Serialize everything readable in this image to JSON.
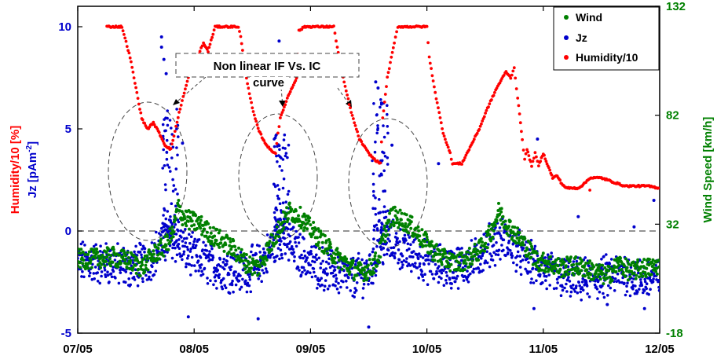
{
  "chart_data": {
    "type": "scatter",
    "x_axis": {
      "ticks": [
        "07/05",
        "08/05",
        "09/05",
        "10/05",
        "11/05",
        "12/05"
      ],
      "range": [
        "07/05",
        "12/05"
      ]
    },
    "y_left": {
      "label_humidity": "Humidity/10 [%]",
      "label_jz_prefix": "Jz [pAm",
      "label_jz_sup": "-2",
      "label_jz_suffix": "]",
      "range": [
        -5,
        11
      ],
      "ticks": [
        "-5",
        "0",
        "5",
        "10"
      ],
      "color_humidity": "#ff0000",
      "color_jz": "#0000cc"
    },
    "y_right": {
      "label": "Wind Speed [km/h]",
      "range": [
        -18,
        132
      ],
      "ticks": [
        "-18",
        "32",
        "82",
        "132"
      ],
      "color": "#008000"
    },
    "zero_line": 0,
    "legend": {
      "placement": "top-right",
      "entries": [
        {
          "name": "Wind",
          "color": "#008000"
        },
        {
          "name": "Jz",
          "color": "#0000cc"
        },
        {
          "name": "Humidity/10",
          "color": "#ff0000"
        }
      ]
    },
    "annotation": {
      "line1": "Non linear IF Vs. IC",
      "line2": "curve"
    },
    "series": [
      {
        "name": "Humidity/10",
        "color": "#ff0000",
        "points": [
          [
            0.25,
            10
          ],
          [
            0.38,
            10
          ],
          [
            0.45,
            8.5
          ],
          [
            0.5,
            7
          ],
          [
            0.55,
            5.5
          ],
          [
            0.6,
            5
          ],
          [
            0.65,
            5.3
          ],
          [
            0.7,
            4.8
          ],
          [
            0.75,
            4.2
          ],
          [
            0.8,
            4
          ],
          [
            0.88,
            6
          ],
          [
            0.95,
            7.5
          ],
          [
            1.0,
            8.2
          ],
          [
            1.05,
            8.8
          ],
          [
            1.08,
            9.2
          ],
          [
            1.12,
            8.8
          ],
          [
            1.18,
            10
          ],
          [
            1.38,
            10
          ],
          [
            1.4,
            9.5
          ],
          [
            1.45,
            7.5
          ],
          [
            1.5,
            6
          ],
          [
            1.55,
            5
          ],
          [
            1.6,
            4.4
          ],
          [
            1.65,
            4
          ],
          [
            1.7,
            3.8
          ],
          [
            1.72,
            4.8
          ],
          [
            1.74,
            5.5
          ],
          [
            1.8,
            6.5
          ],
          [
            1.88,
            7.5
          ],
          [
            1.9,
            9.8
          ],
          [
            1.95,
            10
          ],
          [
            2.2,
            10
          ],
          [
            2.23,
            9
          ],
          [
            2.28,
            7.5
          ],
          [
            2.35,
            5.8
          ],
          [
            2.42,
            4.5
          ],
          [
            2.5,
            3.8
          ],
          [
            2.55,
            3.5
          ],
          [
            2.6,
            3.3
          ],
          [
            2.62,
            5.5
          ],
          [
            2.66,
            7.5
          ],
          [
            2.72,
            9.2
          ],
          [
            2.75,
            10
          ],
          [
            3.0,
            10
          ],
          [
            3.02,
            8.5
          ],
          [
            3.08,
            6.5
          ],
          [
            3.14,
            4.8
          ],
          [
            3.2,
            3.8
          ],
          [
            3.22,
            3.3
          ],
          [
            3.3,
            3.3
          ],
          [
            3.38,
            4.2
          ],
          [
            3.45,
            5
          ],
          [
            3.52,
            6
          ],
          [
            3.6,
            7
          ],
          [
            3.68,
            7.8
          ],
          [
            3.72,
            7.5
          ],
          [
            3.75,
            8
          ],
          [
            3.78,
            6.5
          ],
          [
            3.82,
            4.5
          ],
          [
            3.84,
            3.5
          ],
          [
            3.86,
            4
          ],
          [
            3.9,
            3.2
          ],
          [
            3.93,
            3.8
          ],
          [
            3.96,
            3.2
          ],
          [
            4.0,
            3.8
          ],
          [
            4.04,
            3.2
          ],
          [
            4.08,
            2.6
          ],
          [
            4.12,
            2.7
          ],
          [
            4.16,
            2.3
          ],
          [
            4.2,
            2.1
          ],
          [
            4.25,
            2.1
          ],
          [
            4.3,
            2.1
          ],
          [
            4.35,
            2.3
          ],
          [
            4.4,
            2.6
          ],
          [
            4.5,
            2.6
          ],
          [
            4.55,
            2.5
          ],
          [
            4.6,
            2.4
          ],
          [
            4.7,
            2.2
          ],
          [
            4.8,
            2.2
          ],
          [
            4.9,
            2.2
          ],
          [
            5.0,
            2.1
          ]
        ]
      },
      {
        "name": "Jz",
        "color": "#0000cc",
        "baseline": [
          [
            0,
            -1.5
          ],
          [
            0.3,
            -1.6
          ],
          [
            0.45,
            -1.8
          ],
          [
            0.6,
            -1.5
          ],
          [
            0.7,
            -0.8
          ],
          [
            0.8,
            -0.3
          ],
          [
            0.9,
            -0.8
          ],
          [
            1.0,
            -1.3
          ],
          [
            1.2,
            -1.8
          ],
          [
            1.4,
            -2.0
          ],
          [
            1.55,
            -1.7
          ],
          [
            1.65,
            -1.0
          ],
          [
            1.75,
            -0.3
          ],
          [
            1.85,
            -0.8
          ],
          [
            2.0,
            -1.6
          ],
          [
            2.2,
            -2.0
          ],
          [
            2.35,
            -2.3
          ],
          [
            2.5,
            -2.0
          ],
          [
            2.6,
            -0.8
          ],
          [
            2.7,
            -0.5
          ],
          [
            2.8,
            -1.0
          ],
          [
            3.0,
            -1.5
          ],
          [
            3.2,
            -1.8
          ],
          [
            3.4,
            -1.5
          ],
          [
            3.55,
            -0.6
          ],
          [
            3.65,
            -0.4
          ],
          [
            3.75,
            -0.8
          ],
          [
            3.9,
            -1.6
          ],
          [
            4.1,
            -2.2
          ],
          [
            4.3,
            -2.4
          ],
          [
            4.5,
            -2.3
          ],
          [
            4.7,
            -2.0
          ],
          [
            4.85,
            -2.4
          ],
          [
            5.0,
            -2.2
          ]
        ],
        "spikes": [
          {
            "x": 0.8,
            "min": 0,
            "max": 6
          },
          {
            "x": 1.75,
            "min": 0,
            "max": 5
          },
          {
            "x": 2.6,
            "min": 0,
            "max": 6.5
          }
        ],
        "outliers": [
          [
            0.72,
            9.5
          ],
          [
            0.72,
            9.0
          ],
          [
            0.74,
            8.4
          ],
          [
            0.76,
            7.7
          ],
          [
            0.9,
            4.3
          ],
          [
            1.73,
            9.3
          ],
          [
            1.76,
            7.5
          ],
          [
            2.56,
            7.3
          ],
          [
            2.58,
            7.0
          ],
          [
            2.7,
            4.2
          ],
          [
            3.1,
            3.3
          ],
          [
            3.95,
            4.5
          ],
          [
            4.3,
            0.7
          ],
          [
            4.78,
            0.2
          ],
          [
            4.95,
            1.5
          ],
          [
            0.95,
            -4.2
          ],
          [
            1.55,
            -4.3
          ],
          [
            2.5,
            -4.7
          ],
          [
            3.92,
            -3.8
          ],
          [
            4.87,
            -3.8
          ],
          [
            4.55,
            -3.6
          ]
        ]
      },
      {
        "name": "Wind",
        "color": "#008000",
        "points_kmh": [
          [
            0.1,
            16
          ],
          [
            0.3,
            17
          ],
          [
            0.45,
            15
          ],
          [
            0.55,
            12
          ],
          [
            0.65,
            18
          ],
          [
            0.75,
            22
          ],
          [
            0.82,
            28
          ],
          [
            0.86,
            40
          ],
          [
            0.9,
            36
          ],
          [
            0.95,
            34
          ],
          [
            1.05,
            32
          ],
          [
            1.15,
            27
          ],
          [
            1.25,
            24
          ],
          [
            1.35,
            20
          ],
          [
            1.45,
            14
          ],
          [
            1.55,
            12
          ],
          [
            1.65,
            22
          ],
          [
            1.75,
            32
          ],
          [
            1.82,
            38
          ],
          [
            1.9,
            36
          ],
          [
            2.0,
            30
          ],
          [
            2.1,
            24
          ],
          [
            2.2,
            18
          ],
          [
            2.3,
            14
          ],
          [
            2.4,
            10
          ],
          [
            2.5,
            11
          ],
          [
            2.58,
            16
          ],
          [
            2.65,
            30
          ],
          [
            2.7,
            36
          ],
          [
            2.78,
            34
          ],
          [
            2.85,
            32
          ],
          [
            2.95,
            26
          ],
          [
            3.05,
            20
          ],
          [
            3.15,
            16
          ],
          [
            3.25,
            14
          ],
          [
            3.35,
            16
          ],
          [
            3.45,
            20
          ],
          [
            3.55,
            28
          ],
          [
            3.62,
            38
          ],
          [
            3.66,
            34
          ],
          [
            3.75,
            28
          ],
          [
            3.85,
            22
          ],
          [
            3.95,
            15
          ],
          [
            4.05,
            14
          ],
          [
            4.15,
            12
          ],
          [
            4.25,
            13
          ],
          [
            4.35,
            12
          ],
          [
            4.45,
            10
          ],
          [
            4.55,
            8
          ],
          [
            4.65,
            14
          ],
          [
            4.75,
            10
          ],
          [
            4.85,
            12
          ],
          [
            4.95,
            12
          ],
          [
            5.0,
            14
          ]
        ]
      }
    ]
  }
}
